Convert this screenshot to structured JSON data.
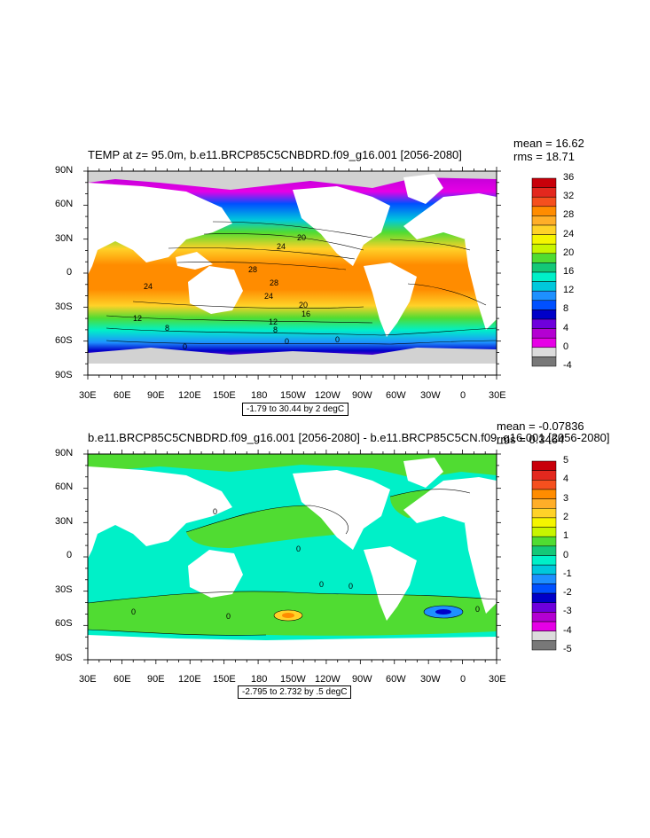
{
  "panel1": {
    "title": "TEMP at z=  95.0m, b.e11.BRCP85C5CNBDRD.f09_g16.001 [2056-2080]",
    "mean_label": "mean = 16.62",
    "rms_label": "rms = 18.71",
    "info_box": "-1.79 to 30.44 by 2 degC",
    "contour_labels": [
      "24",
      "20",
      "28",
      "28",
      "24",
      "24",
      "20",
      "16",
      "12",
      "12",
      "8",
      "8",
      "0",
      "0",
      "0"
    ],
    "colorbar_labels": [
      "36",
      "32",
      "28",
      "24",
      "20",
      "16",
      "12",
      "8",
      "4",
      "0",
      "-4"
    ],
    "colorbar_colors": [
      "#c8000a",
      "#e3281e",
      "#f5501e",
      "#ff8c00",
      "#ffae28",
      "#ffd228",
      "#f5f500",
      "#c8f500",
      "#50dc32",
      "#14c878",
      "#00f0c8",
      "#00c8dc",
      "#1e90ff",
      "#0050ff",
      "#0000c8",
      "#6e00dc",
      "#b400d2",
      "#e600e6",
      "#dcdcdc",
      "#787878"
    ]
  },
  "panel2": {
    "title": "b.e11.BRCP85C5CNBDRD.f09_g16.001 [2056-2080] - b.e11.BRCP85C5CN.f09_g16.001 [2056-2080]",
    "mean_label": "mean = -0.07836",
    "rms_label": "rms = 0.3464",
    "info_box": "-2.795 to 2.732 by .5 degC",
    "contour_labels": [
      "0",
      "0",
      "0",
      "0",
      "0",
      "0",
      "0"
    ],
    "colorbar_labels": [
      "5",
      "4",
      "3",
      "2",
      "1",
      "0",
      "-1",
      "-2",
      "-3",
      "-4",
      "-5"
    ],
    "colorbar_colors": [
      "#c8000a",
      "#e3281e",
      "#f5501e",
      "#ff8c00",
      "#ffae28",
      "#ffd228",
      "#f5f500",
      "#c8f500",
      "#50dc32",
      "#14c878",
      "#00f0c8",
      "#00c8dc",
      "#1e90ff",
      "#0050ff",
      "#0000c8",
      "#6e00dc",
      "#b400d2",
      "#e600e6",
      "#dcdcdc",
      "#787878"
    ]
  },
  "axes": {
    "lat_labels": [
      "90N",
      "60N",
      "30N",
      "0",
      "30S",
      "60S",
      "90S"
    ],
    "lon_labels": [
      "30E",
      "60E",
      "90E",
      "120E",
      "150E",
      "180",
      "150W",
      "120W",
      "90W",
      "60W",
      "30W",
      "0",
      "30E"
    ]
  },
  "chart_data": [
    {
      "type": "heatmap",
      "title": "TEMP at z=  95.0m, b.e11.BRCP85C5CNBDRD.f09_g16.001 [2056-2080]",
      "variable": "TEMP",
      "units": "degC",
      "mean": 16.62,
      "rms": 18.71,
      "data_range": [
        -1.79,
        30.44
      ],
      "contour_interval": 2,
      "colorbar_range": [
        -4,
        36
      ],
      "colorbar_step": 2,
      "x_axis": "longitude 30E to 30E",
      "y_axis": "latitude 90S to 90N"
    },
    {
      "type": "heatmap",
      "title": "b.e11.BRCP85C5CNBDRD.f09_g16.001 [2056-2080] - b.e11.BRCP85C5CN.f09_g16.001 [2056-2080]",
      "variable": "TEMP difference",
      "units": "degC",
      "mean": -0.07836,
      "rms": 0.3464,
      "data_range": [
        -2.795,
        2.732
      ],
      "contour_interval": 0.5,
      "colorbar_range": [
        -5,
        5
      ],
      "colorbar_step": 0.5,
      "x_axis": "longitude 30E to 30E",
      "y_axis": "latitude 90S to 90N"
    }
  ]
}
